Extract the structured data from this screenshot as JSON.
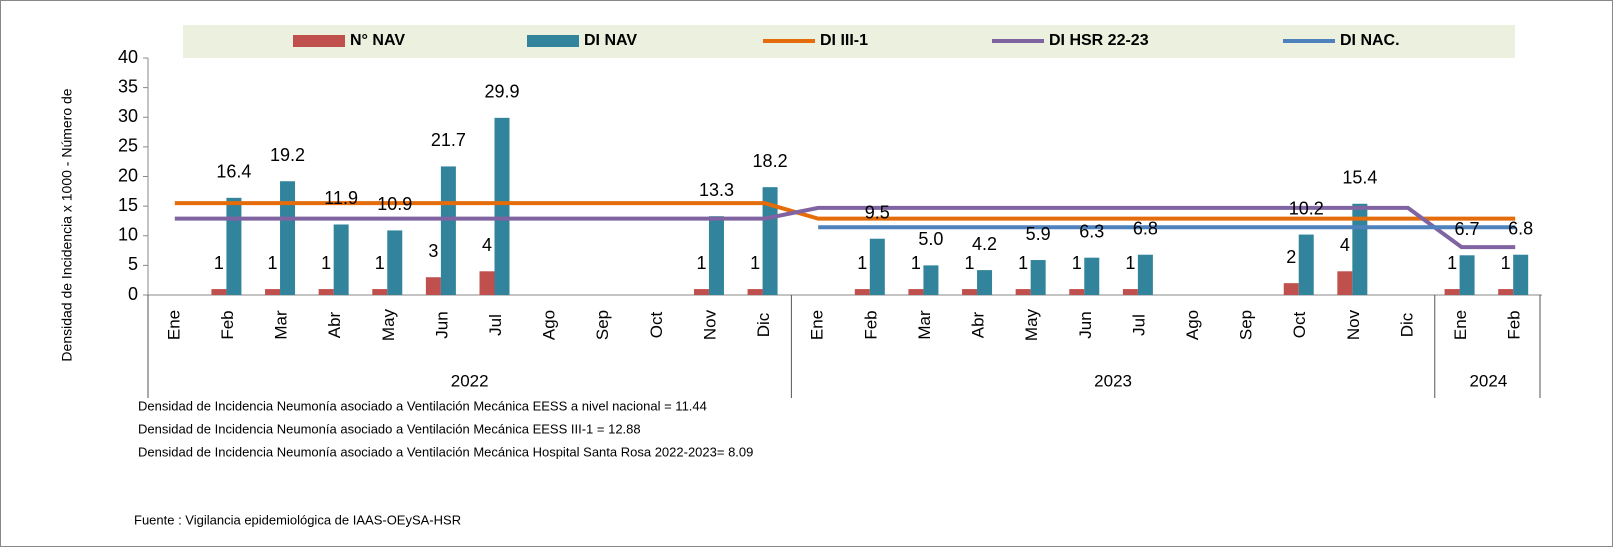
{
  "chart_data": {
    "type": "bar-line",
    "y_axis_label": "Densidad de Incidencia x 1000 - Número de",
    "groups": [
      {
        "label": "2022",
        "categories": [
          "Ene",
          "Feb",
          "Mar",
          "Abr",
          "May",
          "Jun",
          "Jul",
          "Ago",
          "Sep",
          "Oct",
          "Nov",
          "Dic"
        ]
      },
      {
        "label": "2023",
        "categories": [
          "Ene",
          "Feb",
          "Mar",
          "Abr",
          "May",
          "Jun",
          "Jul",
          "Ago",
          "Sep",
          "Oct",
          "Nov",
          "Dic"
        ]
      },
      {
        "label": "2024",
        "categories": [
          "Ene",
          "Feb"
        ]
      }
    ],
    "series": [
      {
        "name": "N° NAV",
        "kind": "bar",
        "color": "#c0504d",
        "values": [
          null,
          1,
          1,
          1,
          1,
          3,
          4,
          null,
          null,
          null,
          1,
          1,
          null,
          1,
          1,
          1,
          1,
          1,
          1,
          null,
          null,
          2,
          4,
          null,
          1,
          1
        ]
      },
      {
        "name": "DI NAV",
        "kind": "bar",
        "color": "#31849b",
        "values": [
          null,
          16.4,
          19.2,
          11.9,
          10.9,
          21.7,
          29.9,
          null,
          null,
          null,
          13.3,
          18.2,
          null,
          9.5,
          5.0,
          4.2,
          5.9,
          6.3,
          6.8,
          null,
          null,
          10.2,
          15.4,
          null,
          6.7,
          6.8
        ],
        "value_labels": [
          null,
          "16.4",
          "19.2",
          "11.9",
          "10.9",
          "21.7",
          "29.9",
          null,
          null,
          null,
          "13.3",
          "18.2",
          null,
          "9.5",
          "5.0",
          "4.2",
          "5.9",
          "6.3",
          "6.8",
          null,
          null,
          "10.2",
          "15.4",
          null,
          "6.7",
          "6.8"
        ]
      },
      {
        "name": "DI III-1",
        "kind": "line",
        "color": "#e46c0a",
        "values": [
          15.5,
          15.5,
          15.5,
          15.5,
          15.5,
          15.5,
          15.5,
          15.5,
          15.5,
          15.5,
          15.5,
          15.5,
          12.88,
          12.88,
          12.88,
          12.88,
          12.88,
          12.88,
          12.88,
          12.88,
          12.88,
          12.88,
          12.88,
          12.88,
          12.88,
          12.88
        ]
      },
      {
        "name": "DI HSR 22-23",
        "kind": "line",
        "color": "#8064a2",
        "values": [
          12.9,
          12.9,
          12.9,
          12.9,
          12.9,
          12.9,
          12.9,
          12.9,
          12.9,
          12.9,
          12.9,
          12.9,
          14.7,
          14.7,
          14.7,
          14.7,
          14.7,
          14.7,
          14.7,
          14.7,
          14.7,
          14.7,
          14.7,
          14.7,
          8.09,
          8.09
        ]
      },
      {
        "name": "DI NAC.",
        "kind": "line",
        "color": "#4f81bd",
        "values": [
          null,
          null,
          null,
          null,
          null,
          null,
          null,
          null,
          null,
          null,
          null,
          null,
          11.44,
          11.44,
          11.44,
          11.44,
          11.44,
          11.44,
          11.44,
          11.44,
          11.44,
          11.44,
          11.44,
          11.44,
          11.44,
          11.44
        ]
      }
    ],
    "ylim": [
      0,
      40
    ],
    "yticks": [
      0,
      5,
      10,
      15,
      20,
      25,
      30,
      35,
      40
    ],
    "notes": [
      "Densidad de Incidencia Neumonía asociado a Ventilación Mecánica EESS a nivel nacional = 11.44",
      "Densidad de Incidencia Neumonía asociado a Ventilación Mecánica EESS III-1 = 12.88",
      "Densidad de Incidencia Neumonía asociado a Ventilación Mecánica Hospital Santa Rosa 2022-2023= 8.09"
    ],
    "source": "Fuente : Vigilancia epidemiológica de IAAS-OEySA-HSR"
  }
}
